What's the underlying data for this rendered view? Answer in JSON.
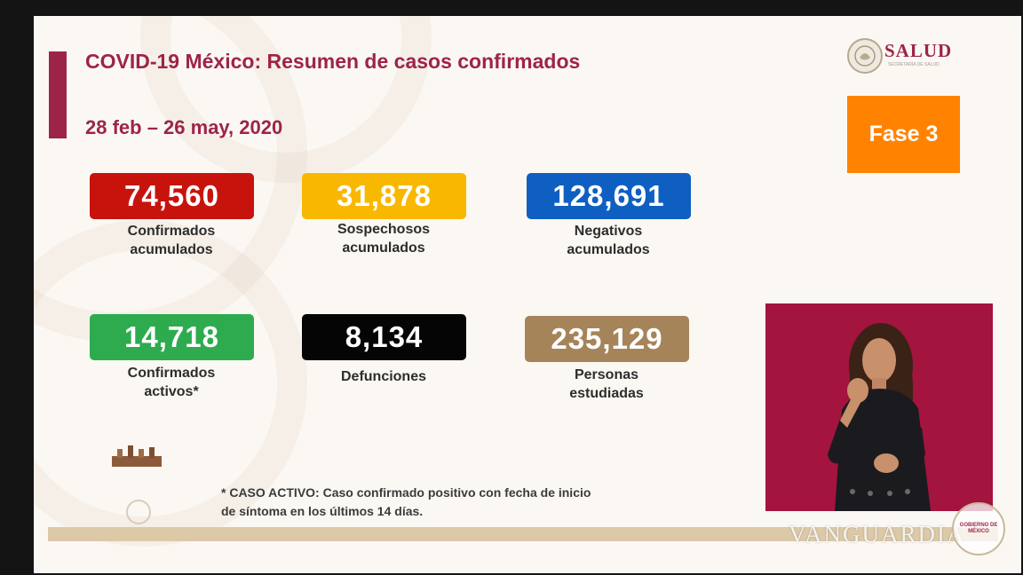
{
  "header": {
    "title": "COVID-19 México: Resumen de casos confirmados",
    "date_range": "28 feb – 26 may, 2020"
  },
  "logo": {
    "name": "SALUD",
    "subtitle": "SECRETARÍA DE SALUD"
  },
  "phase_badge": "Fase 3",
  "stats": [
    {
      "value": "74,560",
      "label_line1": "Confirmados",
      "label_line2": "acumulados",
      "color": "#c8130d"
    },
    {
      "value": "31,878",
      "label_line1": "Sospechosos",
      "label_line2": "acumulados",
      "color": "#f9b800"
    },
    {
      "value": "128,691",
      "label_line1": "Negativos",
      "label_line2": "acumulados",
      "color": "#0f5fc2"
    },
    {
      "value": "14,718",
      "label_line1": "Confirmados",
      "label_line2": "activos*",
      "color": "#2eab4e"
    },
    {
      "value": "8,134",
      "label_line1": "Defunciones",
      "label_line2": "",
      "color": "#050505"
    },
    {
      "value": "235,129",
      "label_line1": "Personas",
      "label_line2": "estudiadas",
      "color": "#a6845a"
    }
  ],
  "footnote": {
    "line1": "* CASO ACTIVO: Caso confirmado positivo con fecha de inicio",
    "line2": "de síntoma en los últimos 14 días."
  },
  "watermark": "VANGUARDIA",
  "gob_seal_text": "GOBIERNO DE MÉXICO",
  "colors": {
    "accent": "#9d2449",
    "phase": "#ff8300",
    "interpreter_bg": "#a3143e"
  },
  "icons": [
    "mexico-coat-of-arms-icon",
    "gobierno-de-mexico-seal-icon",
    "heritage-crest-icon"
  ]
}
